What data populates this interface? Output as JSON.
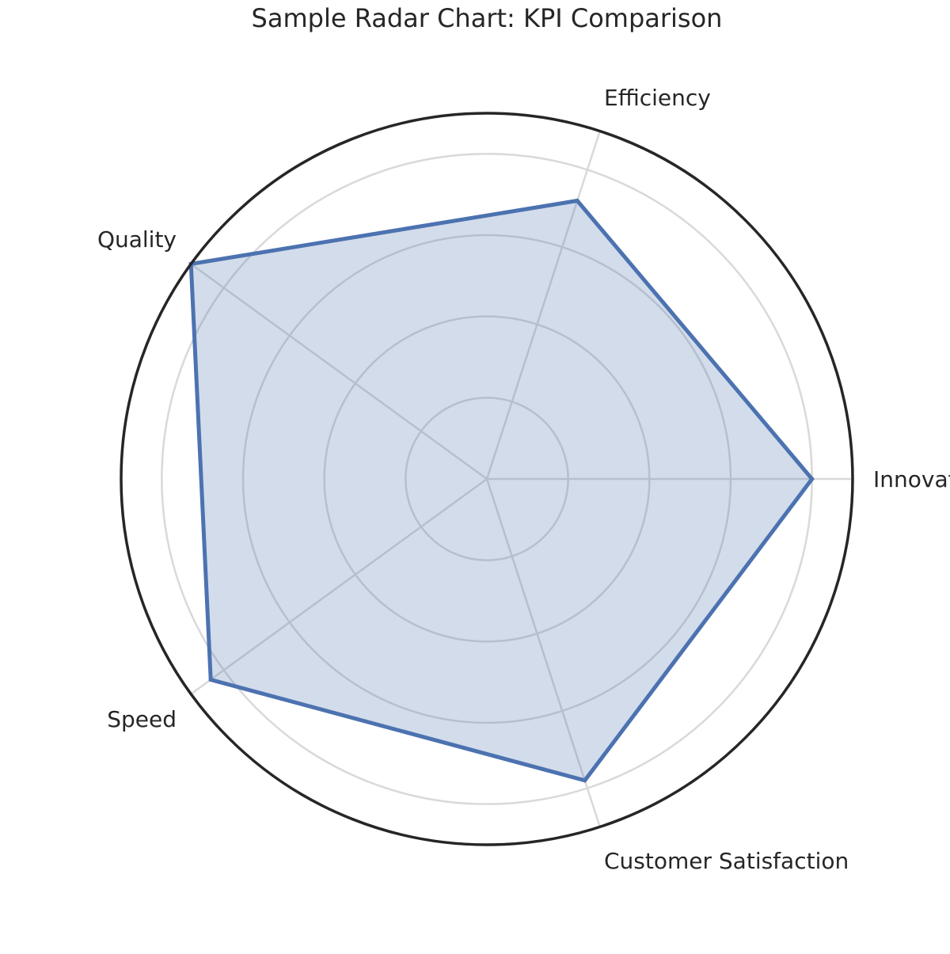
{
  "chart_data": {
    "type": "radar",
    "title": "Sample Radar Chart: KPI Comparison",
    "categories": [
      "Innovation",
      "Efficiency",
      "Quality",
      "Speed",
      "Customer Satisfaction"
    ],
    "series": [
      {
        "values": [
          4,
          3.6,
          4.5,
          4.2,
          3.9
        ]
      }
    ],
    "rlim": [
      0,
      4.5
    ],
    "radial_ticks": [
      1,
      2,
      3,
      4
    ],
    "radial_tick_labels_shown": false,
    "grid": true,
    "legend": "none",
    "colors": {
      "series_line": "#4c72b0",
      "series_fill": "#4c72b0",
      "grid": "#d9d9d9",
      "outer_frame": "#262626",
      "text": "#262626"
    }
  }
}
